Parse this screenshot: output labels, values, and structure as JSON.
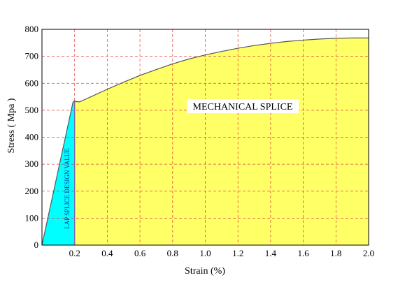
{
  "chart_data": {
    "type": "area",
    "xlabel": "Strain (%)",
    "ylabel": "Stress ( Mpa )",
    "xlim": [
      0,
      2.0
    ],
    "ylim": [
      0,
      800
    ],
    "x_ticks": [
      {
        "value": 0.2,
        "label": "0.2"
      },
      {
        "value": 0.4,
        "label": "0.4"
      },
      {
        "value": 0.6,
        "label": "0.6"
      },
      {
        "value": 0.8,
        "label": "0.8"
      },
      {
        "value": 1.0,
        "label": "1.0"
      },
      {
        "value": 1.2,
        "label": "1.2"
      },
      {
        "value": 1.4,
        "label": "1.4"
      },
      {
        "value": 1.6,
        "label": "1.6"
      },
      {
        "value": 1.8,
        "label": "1.8"
      },
      {
        "value": 2.0,
        "label": "2.0"
      }
    ],
    "y_ticks": [
      {
        "value": 0,
        "label": "0"
      },
      {
        "value": 100,
        "label": "100"
      },
      {
        "value": 200,
        "label": "200"
      },
      {
        "value": 300,
        "label": "300"
      },
      {
        "value": 400,
        "label": "400"
      },
      {
        "value": 500,
        "label": "500"
      },
      {
        "value": 600,
        "label": "600"
      },
      {
        "value": 700,
        "label": "700"
      },
      {
        "value": 800,
        "label": "800"
      }
    ],
    "grid": true,
    "curve": {
      "x": [
        0,
        0.19,
        0.2,
        0.21,
        0.23,
        0.3,
        0.4,
        0.5,
        0.6,
        0.7,
        0.8,
        0.9,
        1.0,
        1.1,
        1.2,
        1.3,
        1.4,
        1.5,
        1.6,
        1.7,
        1.8,
        1.9,
        2.0
      ],
      "y": [
        0,
        530,
        535,
        532,
        531,
        550,
        578,
        604,
        629,
        651,
        672,
        690,
        705,
        718,
        730,
        740,
        748,
        755,
        760,
        764,
        767,
        768,
        768
      ]
    },
    "regions": [
      {
        "label": "LAP SPLICE DESIGN VALUE",
        "x_from": 0,
        "x_to": 0.2,
        "color": "#00ffff"
      },
      {
        "label": "MECHANICAL SPLICE",
        "x_from": 0.2,
        "x_to": 2.0,
        "color": "#ffff66"
      }
    ],
    "colors": {
      "grid": "#e04040",
      "curve": "#555555",
      "frame": "#000000"
    }
  }
}
